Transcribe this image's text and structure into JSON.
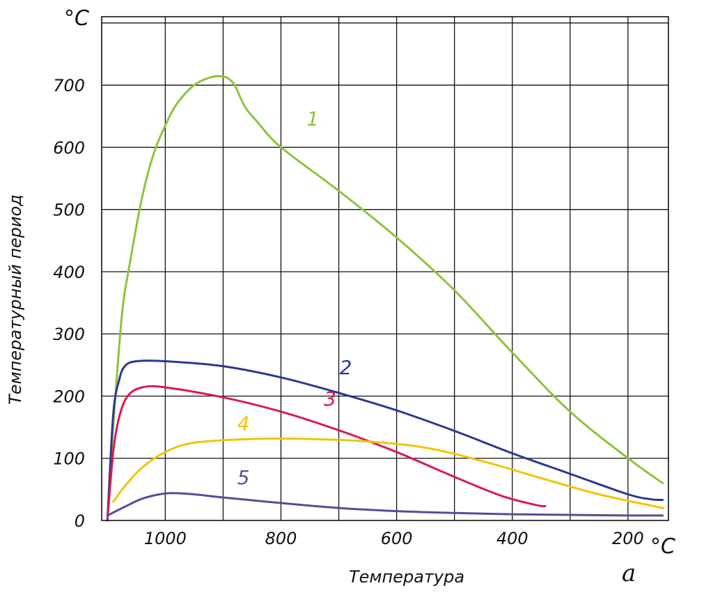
{
  "chart_data": {
    "type": "line",
    "title": "",
    "xlabel": "Температура",
    "ylabel": "Температурный период",
    "x_unit": "°С",
    "y_unit": "°С",
    "panel_label": "а",
    "xlim": [
      1110,
      130
    ],
    "ylim": [
      0,
      810
    ],
    "x_ticks": [
      1000,
      800,
      600,
      400,
      200
    ],
    "y_ticks": [
      0,
      100,
      200,
      300,
      400,
      500,
      600,
      700
    ],
    "grid": true,
    "legend": "inline labels next to curves",
    "series": [
      {
        "name": "1",
        "color": "#8cc43c",
        "label_at": [
          745,
          635
        ],
        "points": [
          [
            1100,
            5
          ],
          [
            1090,
            150
          ],
          [
            1075,
            330
          ],
          [
            1060,
            420
          ],
          [
            1040,
            520
          ],
          [
            1020,
            590
          ],
          [
            1000,
            635
          ],
          [
            980,
            670
          ],
          [
            950,
            700
          ],
          [
            920,
            713
          ],
          [
            900,
            714
          ],
          [
            890,
            710
          ],
          [
            880,
            700
          ],
          [
            870,
            680
          ],
          [
            860,
            662
          ],
          [
            840,
            640
          ],
          [
            800,
            600
          ],
          [
            700,
            530
          ],
          [
            600,
            455
          ],
          [
            500,
            370
          ],
          [
            400,
            270
          ],
          [
            300,
            175
          ],
          [
            200,
            100
          ],
          [
            140,
            60
          ]
        ]
      },
      {
        "name": "2",
        "color": "#2b3890",
        "label_at": [
          688,
          235
        ],
        "points": [
          [
            1100,
            0
          ],
          [
            1090,
            170
          ],
          [
            1080,
            225
          ],
          [
            1070,
            248
          ],
          [
            1050,
            256
          ],
          [
            1000,
            256
          ],
          [
            900,
            248
          ],
          [
            800,
            230
          ],
          [
            700,
            205
          ],
          [
            600,
            177
          ],
          [
            500,
            144
          ],
          [
            400,
            108
          ],
          [
            300,
            75
          ],
          [
            200,
            42
          ],
          [
            160,
            34
          ],
          [
            140,
            33
          ]
        ]
      },
      {
        "name": "3",
        "color": "#d81b50",
        "label_at": [
          715,
          185
        ],
        "points": [
          [
            1100,
            0
          ],
          [
            1090,
            110
          ],
          [
            1080,
            165
          ],
          [
            1065,
            200
          ],
          [
            1040,
            214
          ],
          [
            1000,
            214
          ],
          [
            900,
            198
          ],
          [
            800,
            175
          ],
          [
            700,
            145
          ],
          [
            600,
            110
          ],
          [
            500,
            70
          ],
          [
            420,
            40
          ],
          [
            360,
            25
          ],
          [
            343,
            23
          ]
        ]
      },
      {
        "name": "4",
        "color": "#f2c500",
        "label_at": [
          865,
          145
        ],
        "points": [
          [
            1090,
            30
          ],
          [
            1070,
            55
          ],
          [
            1040,
            85
          ],
          [
            1000,
            110
          ],
          [
            950,
            125
          ],
          [
            850,
            131
          ],
          [
            750,
            131
          ],
          [
            650,
            127
          ],
          [
            550,
            117
          ],
          [
            450,
            95
          ],
          [
            350,
            68
          ],
          [
            250,
            42
          ],
          [
            150,
            22
          ],
          [
            140,
            20
          ]
        ]
      },
      {
        "name": "5",
        "color": "#5a4a9a",
        "label_at": [
          865,
          58
        ],
        "points": [
          [
            1100,
            8
          ],
          [
            1070,
            22
          ],
          [
            1040,
            35
          ],
          [
            1010,
            42
          ],
          [
            990,
            44
          ],
          [
            950,
            42
          ],
          [
            900,
            37
          ],
          [
            800,
            28
          ],
          [
            700,
            20
          ],
          [
            600,
            15
          ],
          [
            500,
            12
          ],
          [
            400,
            10
          ],
          [
            300,
            9
          ],
          [
            200,
            8
          ],
          [
            140,
            8
          ]
        ]
      }
    ]
  }
}
